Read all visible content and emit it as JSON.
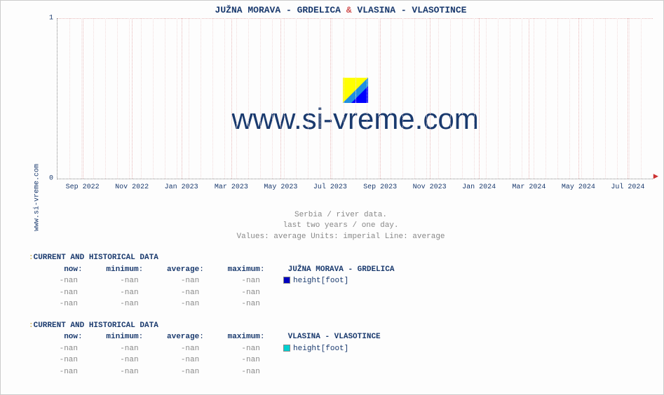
{
  "site_label": "www.si-vreme.com",
  "chart": {
    "type": "line",
    "title_station_a": "JUŽNA MORAVA -  GRDELICA",
    "title_amp": "&",
    "title_station_b": "VLASINA -  VLASOTINCE",
    "background_color": "#fdfdfd",
    "grid_color": "#e8b8b8",
    "axis_color": "#888888",
    "text_color": "#1a3a6e",
    "ylim": [
      0,
      1
    ],
    "yticks": [
      0,
      1
    ],
    "ytick_labels": [
      "0",
      "1"
    ],
    "xtick_labels": [
      "Sep 2022",
      "Nov 2022",
      "Jan 2023",
      "Mar 2023",
      "May 2023",
      "Jul 2023",
      "Sep 2023",
      "Nov 2023",
      "Jan 2024",
      "Mar 2024",
      "May 2024",
      "Jul 2024"
    ],
    "xtick_positions_pct": [
      4.2,
      12.5,
      20.8,
      29.2,
      37.5,
      45.8,
      54.2,
      62.5,
      70.8,
      79.2,
      87.5,
      95.8
    ],
    "watermark_text": "www.si-vreme.com",
    "watermark_text_color": "#1a3a6e",
    "watermark_fontsize_pt": 42,
    "caption_line1": "Serbia / river data.",
    "caption_line2": "last two years / one day.",
    "caption_line3": "Values: average  Units: imperial  Line: average",
    "caption_color": "#888888",
    "caption_fontsize_pt": 11,
    "logo_colors": [
      "#ffff00",
      "#0050ff",
      "#2090e0"
    ]
  },
  "data_sections": [
    {
      "header": "CURRENT AND HISTORICAL DATA",
      "columns": {
        "now": "now",
        "min": "minimum",
        "avg": "average",
        "max": "maximum"
      },
      "series_label": "JUŽNA MORAVA -  GRDELICA",
      "series_swatch_color": "#0000c0",
      "series_unit": "height[foot]",
      "rows": [
        {
          "now": "-nan",
          "min": "-nan",
          "avg": "-nan",
          "max": "-nan"
        },
        {
          "now": "-nan",
          "min": "-nan",
          "avg": "-nan",
          "max": "-nan"
        },
        {
          "now": "-nan",
          "min": "-nan",
          "avg": "-nan",
          "max": "-nan"
        }
      ]
    },
    {
      "header": "CURRENT AND HISTORICAL DATA",
      "columns": {
        "now": "now",
        "min": "minimum",
        "avg": "average",
        "max": "maximum"
      },
      "series_label": "VLASINA -  VLASOTINCE",
      "series_swatch_color": "#00d0d0",
      "series_unit": "height[foot]",
      "rows": [
        {
          "now": "-nan",
          "min": "-nan",
          "avg": "-nan",
          "max": "-nan"
        },
        {
          "now": "-nan",
          "min": "-nan",
          "avg": "-nan",
          "max": "-nan"
        },
        {
          "now": "-nan",
          "min": "-nan",
          "avg": "-nan",
          "max": "-nan"
        }
      ]
    }
  ]
}
